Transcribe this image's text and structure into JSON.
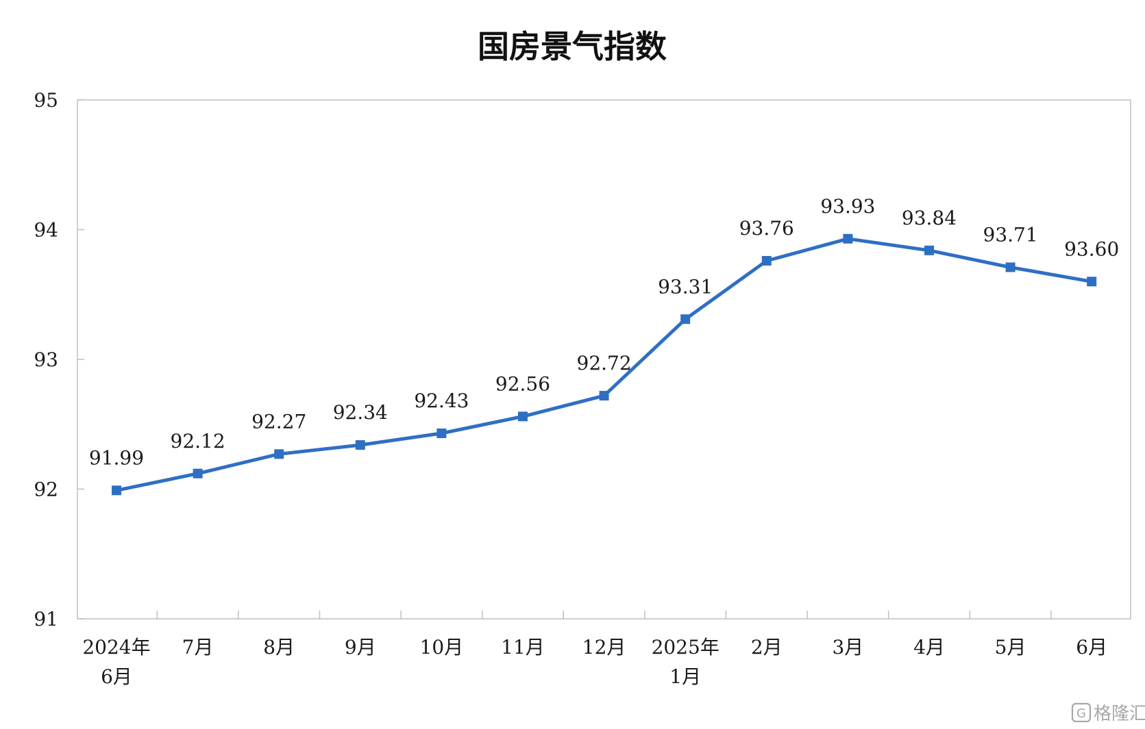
{
  "chart_data": {
    "type": "line",
    "title": "国房景气指数",
    "xlabel": "",
    "ylabel": "",
    "categories": [
      [
        "2024年",
        "6月"
      ],
      [
        "7月"
      ],
      [
        "8月"
      ],
      [
        "9月"
      ],
      [
        "10月"
      ],
      [
        "11月"
      ],
      [
        "12月"
      ],
      [
        "2025年",
        "1月"
      ],
      [
        "2月"
      ],
      [
        "3月"
      ],
      [
        "4月"
      ],
      [
        "5月"
      ],
      [
        "6月"
      ]
    ],
    "series": [
      {
        "values": [
          91.99,
          92.12,
          92.27,
          92.34,
          92.43,
          92.56,
          92.72,
          93.31,
          93.76,
          93.93,
          93.84,
          93.71,
          93.6
        ],
        "labels": [
          "91.99",
          "92.12",
          "92.27",
          "92.34",
          "92.43",
          "92.56",
          "92.72",
          "93.31",
          "93.76",
          "93.93",
          "93.84",
          "93.71",
          "93.60"
        ],
        "color": "#2e6fc4"
      }
    ],
    "ylim": [
      91,
      95
    ],
    "yticks": [
      91,
      92,
      93,
      94,
      95
    ],
    "grid": false,
    "legend": "none"
  },
  "watermark": {
    "text": "格隆汇",
    "icon": "glh-logo-icon"
  },
  "colors": {
    "line": "#2e6fc4",
    "axis": "#bfbfbf",
    "text": "#1a1a1a"
  }
}
